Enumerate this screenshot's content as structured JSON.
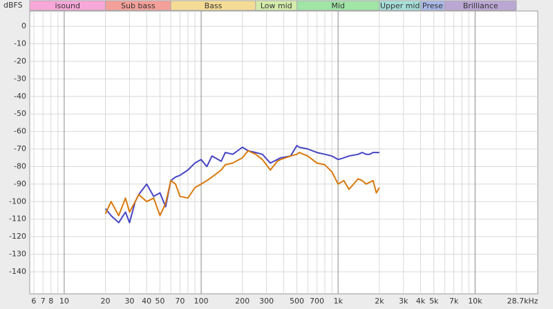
{
  "chart_data": {
    "type": "line",
    "y_label": "dBFS",
    "x_scale": "log",
    "grid": true,
    "xlim": [
      5.6,
      28700
    ],
    "ylim": [
      -152.6,
      8.7
    ],
    "yticks": [
      0,
      -10,
      -20,
      -30,
      -40,
      -50,
      -60,
      -70,
      -80,
      -90,
      -100,
      -110,
      -120,
      -130,
      -140
    ],
    "xticks": [
      6,
      7,
      8,
      10,
      20,
      30,
      40,
      50,
      70,
      100,
      200,
      300,
      500,
      700,
      {
        "value": 1000,
        "label": "1k"
      },
      {
        "value": 2000,
        "label": "2k"
      },
      {
        "value": 3000,
        "label": "3k"
      },
      {
        "value": 4000,
        "label": "4k"
      },
      {
        "value": 5000,
        "label": "5k"
      },
      {
        "value": 7000,
        "label": "7k"
      },
      {
        "value": 10000,
        "label": "10k"
      },
      {
        "value": 28700,
        "label": "28.7kHz"
      }
    ],
    "xminor_grid": [
      9,
      60,
      80,
      90,
      400,
      600,
      800,
      900,
      6000,
      8000,
      9000,
      20000
    ],
    "bands": [
      {
        "name": "isound",
        "from": 5.6,
        "to": 20,
        "color": "#f7a8d8"
      },
      {
        "name": "Sub bass",
        "from": 20,
        "to": 60,
        "color": "#f4a09a"
      },
      {
        "name": "Bass",
        "from": 60,
        "to": 250,
        "color": "#f5dc96"
      },
      {
        "name": "Low mid",
        "from": 250,
        "to": 500,
        "color": "#d4ecab"
      },
      {
        "name": "Mid",
        "from": 500,
        "to": 2000,
        "color": "#a0e4a6"
      },
      {
        "name": "Upper mid",
        "from": 2000,
        "to": 4000,
        "color": "#a7dfd8"
      },
      {
        "name": "Prese",
        "from": 4000,
        "to": 6000,
        "color": "#a9b9e8"
      },
      {
        "name": "Brilliance",
        "from": 6000,
        "to": 20000,
        "color": "#bba7d3"
      }
    ],
    "x": [
      20,
      22,
      25,
      28,
      30,
      33,
      35,
      40,
      45,
      50,
      55,
      60,
      65,
      70,
      80,
      90,
      100,
      110,
      120,
      140,
      150,
      170,
      200,
      220,
      250,
      280,
      320,
      360,
      380,
      450,
      500,
      520,
      600,
      700,
      800,
      900,
      1000,
      1100,
      1200,
      1400,
      1500,
      1600,
      1700,
      1800,
      1900,
      2000
    ],
    "series": [
      {
        "color": "#4444c4",
        "values": [
          -104,
          -108,
          -112,
          -106,
          -112,
          -100,
          -96,
          -90,
          -97,
          -95,
          -103,
          -88,
          -86,
          -85,
          -82,
          -78,
          -76,
          -80,
          -74,
          -77,
          -72,
          -73,
          -69,
          -71,
          -72,
          -73,
          -78,
          -76,
          -75,
          -74,
          -68,
          -69,
          -70,
          -72,
          -73,
          -74,
          -76,
          -75,
          -74,
          -73,
          -72,
          -73,
          -73,
          -72,
          -72,
          -72
        ]
      },
      {
        "color": "#d8780a",
        "values": [
          -107,
          -100,
          -108,
          -98,
          -106,
          -100,
          -96,
          -100,
          -98,
          -108,
          -101,
          -88,
          -90,
          -97,
          -98,
          -92,
          -90,
          -88,
          -86,
          -82,
          -79,
          -78,
          -75,
          -71,
          -73,
          -76,
          -82,
          -77,
          -76,
          -74,
          -73,
          -72,
          -74,
          -78,
          -79,
          -83,
          -90,
          -88,
          -93,
          -87,
          -88,
          -90,
          -89,
          -88,
          -95,
          -92
        ]
      }
    ]
  }
}
